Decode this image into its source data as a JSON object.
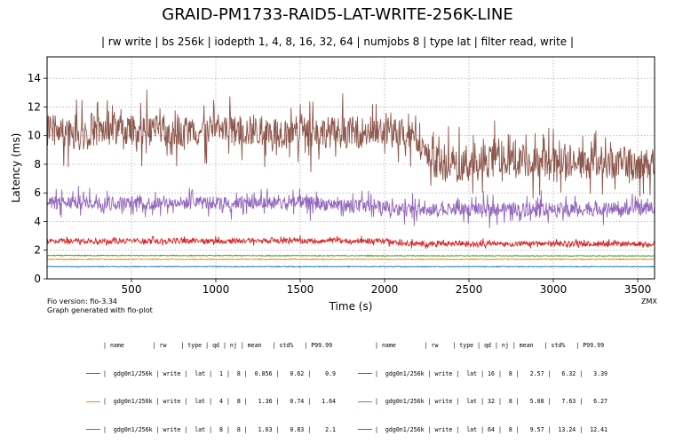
{
  "title": "GRAID-PM1733-RAID5-LAT-WRITE-256K-LINE",
  "subtitle": "| rw write | bs 256k | iodepth 1, 4, 8, 16, 32, 64 | numjobs 8 | type lat | filter read, write |",
  "footer": {
    "fio_version": "Fio version: fio-3.34",
    "generated_with": "Graph generated with fio-plot",
    "corner_label": "ZMX"
  },
  "chart_data": {
    "type": "line",
    "title": "GRAID-PM1733-RAID5-LAT-WRITE-256K-LINE",
    "xlabel": "Time (s)",
    "ylabel": "Latency (ms)",
    "xlim": [
      0,
      3600
    ],
    "ylim": [
      0,
      15.5
    ],
    "xticks": [
      500,
      1000,
      1500,
      2000,
      2500,
      3000,
      3500
    ],
    "yticks": [
      0,
      2,
      4,
      6,
      8,
      10,
      12,
      14
    ],
    "grid": true,
    "series": [
      {
        "name": "gdg0n1/256k",
        "rw": "write",
        "type": "lat",
        "qd": 1,
        "nj": 8,
        "mean": 0.856,
        "std_pct": 0.62,
        "p99_99": 0.9,
        "color": "#1f77b4",
        "profile": [
          [
            0,
            0.85
          ],
          [
            3600,
            0.85
          ]
        ],
        "noise": 0.03,
        "spikes": 0
      },
      {
        "name": "gdg0n1/256k",
        "rw": "write",
        "type": "lat",
        "qd": 4,
        "nj": 8,
        "mean": 1.36,
        "std_pct": 0.74,
        "p99_99": 1.64,
        "color": "#ff7f0e",
        "profile": [
          [
            0,
            1.36
          ],
          [
            3600,
            1.36
          ]
        ],
        "noise": 0.03,
        "spikes": 0
      },
      {
        "name": "gdg0n1/256k",
        "rw": "write",
        "type": "lat",
        "qd": 8,
        "nj": 8,
        "mean": 1.63,
        "std_pct": 0.83,
        "p99_99": 2.1,
        "color": "#2ca02c",
        "profile": [
          [
            0,
            1.63
          ],
          [
            3600,
            1.6
          ]
        ],
        "noise": 0.03,
        "spikes": 0
      },
      {
        "name": "gdg0n1/256k",
        "rw": "write",
        "type": "lat",
        "qd": 16,
        "nj": 8,
        "mean": 2.57,
        "std_pct": 6.32,
        "p99_99": 3.39,
        "color": "#d62728",
        "profile": [
          [
            0,
            2.65
          ],
          [
            2000,
            2.65
          ],
          [
            2100,
            2.45
          ],
          [
            3600,
            2.45
          ]
        ],
        "noise": 0.18,
        "spikes": 0.2
      },
      {
        "name": "gdg0n1/256k",
        "rw": "write",
        "type": "lat",
        "qd": 32,
        "nj": 8,
        "mean": 5.08,
        "std_pct": 7.63,
        "p99_99": 6.27,
        "color": "#9467bd",
        "profile": [
          [
            0,
            5.3
          ],
          [
            1500,
            5.3
          ],
          [
            2000,
            5.0
          ],
          [
            2100,
            4.8
          ],
          [
            3600,
            4.9
          ]
        ],
        "noise": 0.45,
        "spikes": 0.9
      },
      {
        "name": "gdg0n1/256k",
        "rw": "write",
        "type": "lat",
        "qd": 64,
        "nj": 8,
        "mean": 9.57,
        "std_pct": 13.24,
        "p99_99": 12.41,
        "color": "#8c564b",
        "profile": [
          [
            0,
            10.4
          ],
          [
            2200,
            10.2
          ],
          [
            2250,
            8.5
          ],
          [
            2350,
            7.9
          ],
          [
            2600,
            7.8
          ],
          [
            2650,
            8.8
          ],
          [
            2700,
            8.2
          ],
          [
            3600,
            8.0
          ]
        ],
        "noise": 1.1,
        "spikes": 2.0
      }
    ]
  },
  "legend": {
    "header": "| name        | rw    | type | qd | nj | mean   | std%   | P99.99",
    "rows": [
      "|  gdg0n1/256k | write |  lat |  1 |  8 |  0.856 |   0.62 |    0.9",
      "|  gdg0n1/256k | write |  lat |  4 |  8 |   1.36 |   0.74 |   1.64",
      "|  gdg0n1/256k | write |  lat |  8 |  8 |   1.63 |   0.83 |    2.1",
      "|  gdg0n1/256k | write |  lat | 16 |  8 |   2.57 |   6.32 |   3.39",
      "|  gdg0n1/256k | write |  lat | 32 |  8 |   5.08 |   7.63 |   6.27",
      "|  gdg0n1/256k | write |  lat | 64 |  8 |   9.57 |  13.24 |  12.41"
    ]
  }
}
